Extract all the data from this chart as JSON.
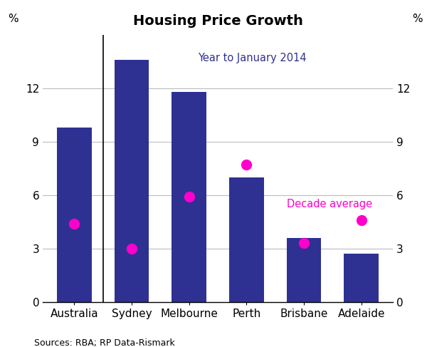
{
  "title": "Housing Price Growth",
  "categories": [
    "Australia",
    "Sydney",
    "Melbourne",
    "Perth",
    "Brisbane",
    "Adelaide"
  ],
  "bar_values": [
    9.8,
    13.6,
    11.8,
    7.0,
    3.6,
    2.7
  ],
  "dot_values": [
    4.4,
    3.0,
    5.9,
    7.7,
    3.3,
    4.6
  ],
  "bar_color": "#2E3192",
  "dot_color": "#FF00CC",
  "ylim": [
    0,
    15
  ],
  "yticks": [
    0,
    3,
    6,
    9,
    12
  ],
  "ylabel_left": "%",
  "ylabel_right": "%",
  "annotation_bar": "Year to January 2014",
  "annotation_dot": "Decade average",
  "annotation_bar_color": "#2E3192",
  "annotation_dot_color": "#FF00CC",
  "source_text": "Sources: RBA; RP Data-Rismark",
  "grid_color": "#BBBBBB",
  "background_color": "#FFFFFF",
  "bar_width": 0.6
}
